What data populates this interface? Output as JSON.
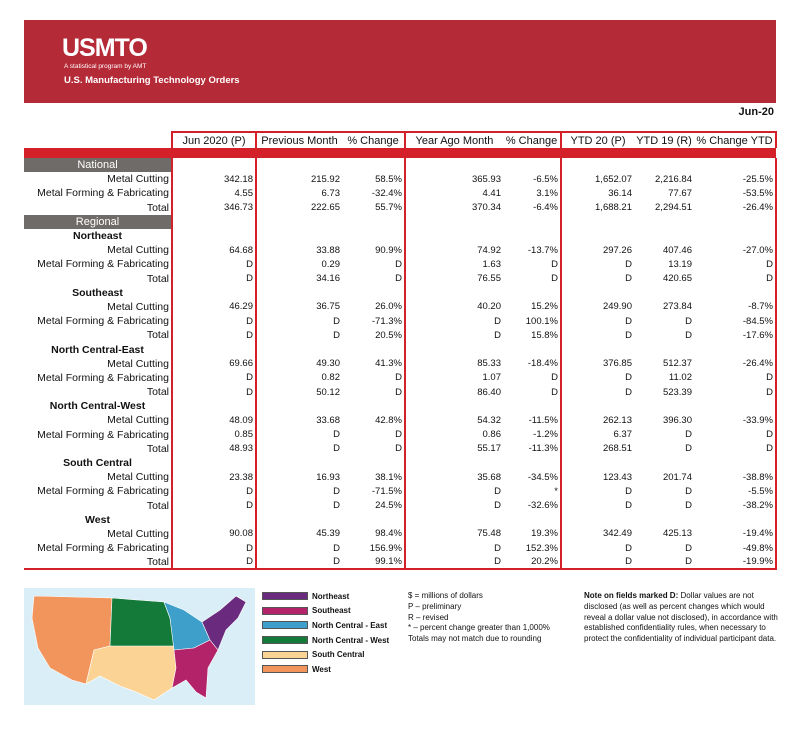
{
  "header": {
    "logo": "USMTO",
    "logo_sub": "A statistical program by AMT",
    "title": "U.S. Manufacturing Technology Orders"
  },
  "period": "Jun-20",
  "columns": [
    "Jun 2020 (P)",
    "Previous Month",
    "% Change",
    "Year Ago Month",
    "% Change",
    "YTD 20 (P)",
    "YTD 19 (R)",
    "% Change YTD"
  ],
  "rows": [
    {
      "type": "sec",
      "label": "National"
    },
    {
      "type": "data",
      "label": "Metal Cutting",
      "v": [
        "342.18",
        "215.92",
        "58.5%",
        "365.93",
        "-6.5%",
        "1,652.07",
        "2,216.84",
        "-25.5%"
      ]
    },
    {
      "type": "data",
      "label": "Metal Forming & Fabricating",
      "v": [
        "4.55",
        "6.73",
        "-32.4%",
        "4.41",
        "3.1%",
        "36.14",
        "77.67",
        "-53.5%"
      ]
    },
    {
      "type": "data",
      "label": "Total",
      "v": [
        "346.73",
        "222.65",
        "55.7%",
        "370.34",
        "-6.4%",
        "1,688.21",
        "2,294.51",
        "-26.4%"
      ]
    },
    {
      "type": "sec",
      "label": "Regional"
    },
    {
      "type": "region",
      "label": "Northeast"
    },
    {
      "type": "data",
      "label": "Metal Cutting",
      "v": [
        "64.68",
        "33.88",
        "90.9%",
        "74.92",
        "-13.7%",
        "297.26",
        "407.46",
        "-27.0%"
      ]
    },
    {
      "type": "data",
      "label": "Metal Forming & Fabricating",
      "v": [
        "D",
        "0.29",
        "D",
        "1.63",
        "D",
        "D",
        "13.19",
        "D"
      ]
    },
    {
      "type": "data",
      "label": "Total",
      "v": [
        "D",
        "34.16",
        "D",
        "76.55",
        "D",
        "D",
        "420.65",
        "D"
      ]
    },
    {
      "type": "region",
      "label": "Southeast"
    },
    {
      "type": "data",
      "label": "Metal Cutting",
      "v": [
        "46.29",
        "36.75",
        "26.0%",
        "40.20",
        "15.2%",
        "249.90",
        "273.84",
        "-8.7%"
      ]
    },
    {
      "type": "data",
      "label": "Metal Forming & Fabricating",
      "v": [
        "D",
        "D",
        "-71.3%",
        "D",
        "100.1%",
        "D",
        "D",
        "-84.5%"
      ]
    },
    {
      "type": "data",
      "label": "Total",
      "v": [
        "D",
        "D",
        "20.5%",
        "D",
        "15.8%",
        "D",
        "D",
        "-17.6%"
      ]
    },
    {
      "type": "region",
      "label": "North Central-East"
    },
    {
      "type": "data",
      "label": "Metal Cutting",
      "v": [
        "69.66",
        "49.30",
        "41.3%",
        "85.33",
        "-18.4%",
        "376.85",
        "512.37",
        "-26.4%"
      ]
    },
    {
      "type": "data",
      "label": "Metal Forming & Fabricating",
      "v": [
        "D",
        "0.82",
        "D",
        "1.07",
        "D",
        "D",
        "11.02",
        "D"
      ]
    },
    {
      "type": "data",
      "label": "Total",
      "v": [
        "D",
        "50.12",
        "D",
        "86.40",
        "D",
        "D",
        "523.39",
        "D"
      ]
    },
    {
      "type": "region",
      "label": "North Central-West"
    },
    {
      "type": "data",
      "label": "Metal Cutting",
      "v": [
        "48.09",
        "33.68",
        "42.8%",
        "54.32",
        "-11.5%",
        "262.13",
        "396.30",
        "-33.9%"
      ]
    },
    {
      "type": "data",
      "label": "Metal Forming & Fabricating",
      "v": [
        "0.85",
        "D",
        "D",
        "0.86",
        "-1.2%",
        "6.37",
        "D",
        "D"
      ]
    },
    {
      "type": "data",
      "label": "Total",
      "v": [
        "48.93",
        "D",
        "D",
        "55.17",
        "-11.3%",
        "268.51",
        "D",
        "D"
      ]
    },
    {
      "type": "region",
      "label": "South Central"
    },
    {
      "type": "data",
      "label": "Metal Cutting",
      "v": [
        "23.38",
        "16.93",
        "38.1%",
        "35.68",
        "-34.5%",
        "123.43",
        "201.74",
        "-38.8%"
      ]
    },
    {
      "type": "data",
      "label": "Metal Forming & Fabricating",
      "v": [
        "D",
        "D",
        "-71.5%",
        "D",
        "*",
        "D",
        "D",
        "-5.5%"
      ]
    },
    {
      "type": "data",
      "label": "Total",
      "v": [
        "D",
        "D",
        "24.5%",
        "D",
        "-32.6%",
        "D",
        "D",
        "-38.2%"
      ]
    },
    {
      "type": "region",
      "label": "West"
    },
    {
      "type": "data",
      "label": "Metal Cutting",
      "v": [
        "90.08",
        "45.39",
        "98.4%",
        "75.48",
        "19.3%",
        "342.49",
        "425.13",
        "-19.4%"
      ]
    },
    {
      "type": "data",
      "label": "Metal Forming & Fabricating",
      "v": [
        "D",
        "D",
        "156.9%",
        "D",
        "152.3%",
        "D",
        "D",
        "-49.8%"
      ]
    },
    {
      "type": "data",
      "label": "Total",
      "v": [
        "D",
        "D",
        "99.1%",
        "D",
        "20.2%",
        "D",
        "D",
        "-19.9%"
      ]
    }
  ],
  "legend": [
    {
      "label": "Northeast",
      "color": "#6a2a7e"
    },
    {
      "label": "Southeast",
      "color": "#b3236a"
    },
    {
      "label": "North Central - East",
      "color": "#3e9fcb"
    },
    {
      "label": "North Central - West",
      "color": "#137a3a"
    },
    {
      "label": "South Central",
      "color": "#fbd495"
    },
    {
      "label": "West",
      "color": "#f2955d"
    }
  ],
  "notes": [
    "$ = millions of dollars",
    "P – preliminary",
    "R – revised",
    "* – percent change greater than 1,000%",
    "Totals may not match due to rounding"
  ],
  "disclosure": {
    "bold": "Note on fields marked D:",
    "text": " Dollar values are not disclosed (as well as percent changes which would reveal a dollar value not disclosed), in accordance with established confidentiality rules, when necessary to protect the confidentiality of individual participant data."
  }
}
